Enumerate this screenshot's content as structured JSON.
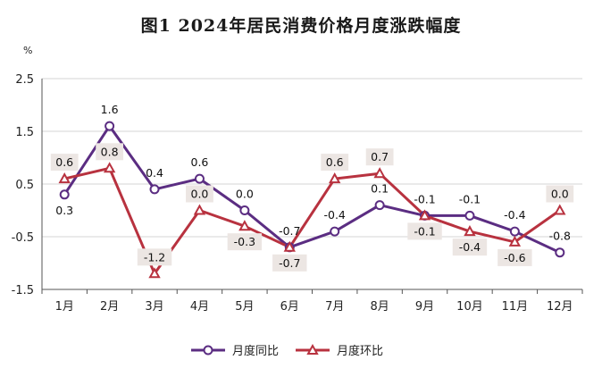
{
  "chart_data": {
    "type": "line",
    "title": "图1  2024年居民消费价格月度涨跌幅度",
    "ylabel": "%",
    "xlabel": "",
    "categories": [
      "1月",
      "2月",
      "3月",
      "4月",
      "5月",
      "6月",
      "7月",
      "8月",
      "9月",
      "10月",
      "11月",
      "12月"
    ],
    "ylim": [
      -1.5,
      2.5
    ],
    "yticks": [
      "2.5",
      "1.5",
      "0.5",
      "-0.5",
      "-1.5"
    ],
    "grid": true,
    "legend_position": "bottom",
    "series": [
      {
        "name": "月度同比",
        "color": "#5b2d82",
        "marker": "circle",
        "values": [
          0.3,
          1.6,
          0.4,
          0.6,
          0.0,
          -0.7,
          -0.4,
          0.1,
          -0.1,
          -0.1,
          -0.4,
          -0.8
        ],
        "labels": [
          "0.3",
          "1.6",
          "0.4",
          "0.6",
          "0.0",
          "-0.7",
          "-0.4",
          "0.1",
          "-0.1",
          "-0.1",
          "-0.4",
          "-0.8"
        ]
      },
      {
        "name": "月度环比",
        "color": "#b8323f",
        "marker": "triangle",
        "values": [
          0.6,
          0.8,
          -1.2,
          0.0,
          -0.3,
          -0.7,
          0.6,
          0.7,
          -0.1,
          -0.4,
          -0.6,
          0.0
        ],
        "labels": [
          "0.6",
          "0.8",
          "-1.2",
          "0.0",
          "-0.3",
          "-0.7",
          "0.6",
          "0.7",
          "-0.1",
          "-0.4",
          "-0.6",
          "0.0"
        ]
      }
    ]
  }
}
